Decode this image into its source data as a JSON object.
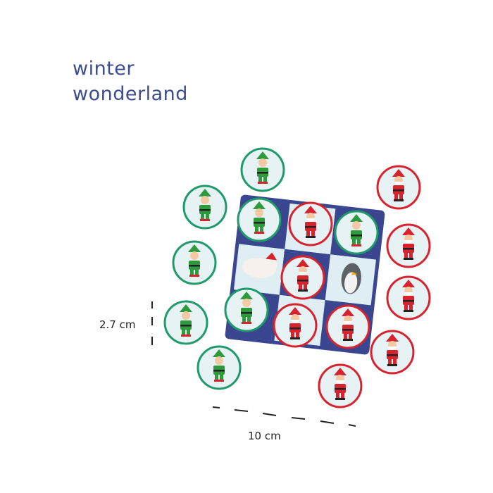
{
  "title": [
    "winter",
    "wonderland"
  ],
  "dimensions": {
    "height": "2.7 cm",
    "width": "10 cm"
  },
  "colors": {
    "title": "#3d4c8f",
    "board_dark": "#3a4690",
    "board_light": "#dfeef2",
    "elf_ring": "#1f9a6a",
    "santa_ring": "#d7232e",
    "token_face": "#e6f2f4"
  },
  "tokens": {
    "elf": 8,
    "santa": 9
  }
}
